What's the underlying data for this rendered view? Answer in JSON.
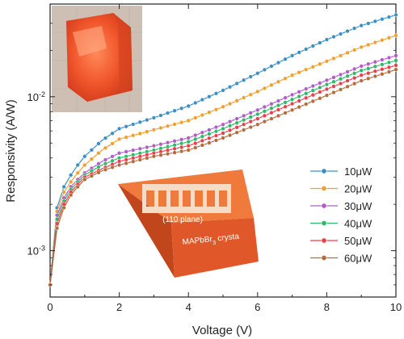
{
  "chart_data": {
    "type": "line",
    "xlabel": "Voltage (V)",
    "ylabel": "Responsivity (A/W)",
    "xlim": [
      0,
      10
    ],
    "ylim": [
      0.0005,
      0.04
    ],
    "yscale": "log",
    "x_ticks": [
      "0",
      "2",
      "4",
      "6",
      "8",
      "10"
    ],
    "y_ticks": [
      {
        "value": 0.001,
        "base": "10",
        "exp": "-3"
      },
      {
        "value": 0.01,
        "base": "10",
        "exp": "-2"
      }
    ],
    "legend_position": "lower-right",
    "grid": false,
    "x": [
      0,
      0.2,
      0.4,
      0.6,
      0.8,
      1,
      1.5,
      2,
      3,
      4,
      5,
      6,
      7,
      8,
      9,
      10
    ],
    "series": [
      {
        "name": "10μW",
        "color": "#3a8fc4",
        "values": [
          0.0006,
          0.0019,
          0.0026,
          0.0031,
          0.0036,
          0.0041,
          0.0052,
          0.0062,
          0.0073,
          0.0087,
          0.011,
          0.0142,
          0.0185,
          0.0235,
          0.029,
          0.034
        ]
      },
      {
        "name": "20μW",
        "color": "#f0a030",
        "values": [
          0.0006,
          0.0018,
          0.0024,
          0.0028,
          0.0032,
          0.0036,
          0.0045,
          0.0053,
          0.0061,
          0.007,
          0.0086,
          0.0108,
          0.0138,
          0.017,
          0.021,
          0.025
        ]
      },
      {
        "name": "30μW",
        "color": "#b25cc8",
        "values": [
          0.0006,
          0.0017,
          0.0022,
          0.0026,
          0.0029,
          0.0032,
          0.0038,
          0.0043,
          0.0048,
          0.0054,
          0.0066,
          0.0082,
          0.0103,
          0.0128,
          0.0158,
          0.0185
        ]
      },
      {
        "name": "40μW",
        "color": "#2fb86a",
        "values": [
          0.0006,
          0.0016,
          0.0021,
          0.0025,
          0.0028,
          0.0031,
          0.0036,
          0.004,
          0.0045,
          0.0051,
          0.0062,
          0.0077,
          0.0096,
          0.012,
          0.0148,
          0.0172
        ]
      },
      {
        "name": "50μW",
        "color": "#e8404a",
        "values": [
          0.0006,
          0.0015,
          0.002,
          0.0024,
          0.0027,
          0.003,
          0.0034,
          0.0038,
          0.0043,
          0.0048,
          0.0058,
          0.0072,
          0.009,
          0.0112,
          0.0138,
          0.016
        ]
      },
      {
        "name": "60μW",
        "color": "#b56a3c",
        "values": [
          0.0006,
          0.0014,
          0.0019,
          0.0023,
          0.0026,
          0.0029,
          0.0033,
          0.0036,
          0.0041,
          0.0045,
          0.0054,
          0.0066,
          0.0082,
          0.0102,
          0.0127,
          0.015
        ]
      }
    ],
    "annotations": {
      "plane_label": "(110 plane)",
      "crystal_label_prefix": "MAPbBr",
      "crystal_label_sub": "3",
      "crystal_label_suffix": " crysta"
    }
  }
}
